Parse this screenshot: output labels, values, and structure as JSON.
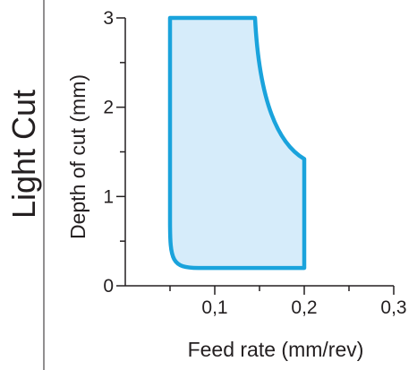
{
  "chart_data": {
    "type": "area",
    "side_label": "Light Cut",
    "xlabel": "Feed rate (mm/rev)",
    "ylabel": "Depth of cut (mm)",
    "xlim": [
      0,
      0.3
    ],
    "ylim": [
      0,
      3
    ],
    "x_ticks": [
      {
        "value": 0.1,
        "label": "0,1"
      },
      {
        "value": 0.2,
        "label": "0,2"
      },
      {
        "value": 0.3,
        "label": "0,3"
      }
    ],
    "y_ticks": [
      {
        "value": 0,
        "label": "0"
      },
      {
        "value": 1,
        "label": "1"
      },
      {
        "value": 2,
        "label": "2"
      },
      {
        "value": 3,
        "label": "3"
      }
    ],
    "region": {
      "feed_min": 0.05,
      "feed_max": 0.2,
      "depth_min": 0.2,
      "depth_max": 3.0,
      "depth_at_feed_max": 1.42,
      "feed_at_depth_max": 0.145
    },
    "colors": {
      "fill": "#d6ecfa",
      "outline": "#1aa3dc",
      "axis": "#231f20"
    }
  }
}
